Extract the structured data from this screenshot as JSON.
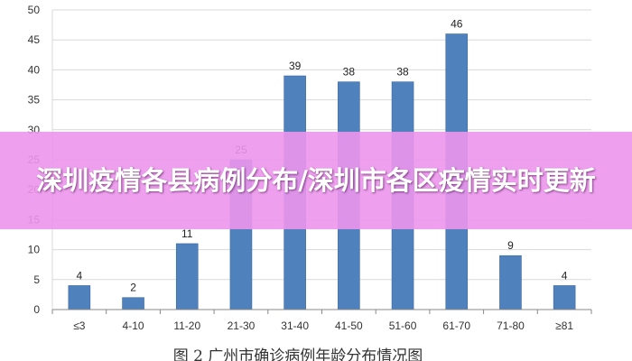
{
  "overlay": {
    "title": "深圳疫情各县病例分布/深圳市各区疫情实时更新"
  },
  "colors": {
    "bar": "#4F81BD",
    "bar_edge": "#3D6AA2",
    "grid": "#D9D9D9",
    "axis": "#888888",
    "overlay": "#EC96EC"
  },
  "chart_data": {
    "type": "bar",
    "title": "图 2 广州市确诊病例年龄分布情况图",
    "xlabel": "",
    "ylabel": "",
    "ylim": [
      0,
      50
    ],
    "yticks": [
      "0",
      "5",
      "10",
      "15",
      "20",
      "25",
      "30",
      "35",
      "40",
      "45",
      "50"
    ],
    "categories": [
      "≤3",
      "4-10",
      "11-20",
      "21-30",
      "31-40",
      "41-50",
      "51-60",
      "61-70",
      "71-80",
      "≥81"
    ],
    "values": [
      4,
      2,
      11,
      25,
      39,
      38,
      38,
      46,
      9,
      4
    ],
    "data_labels": [
      "4",
      "2",
      "11",
      "25",
      "39",
      "38",
      "38",
      "46",
      "9",
      "4"
    ],
    "grid": true,
    "legend": "none"
  }
}
